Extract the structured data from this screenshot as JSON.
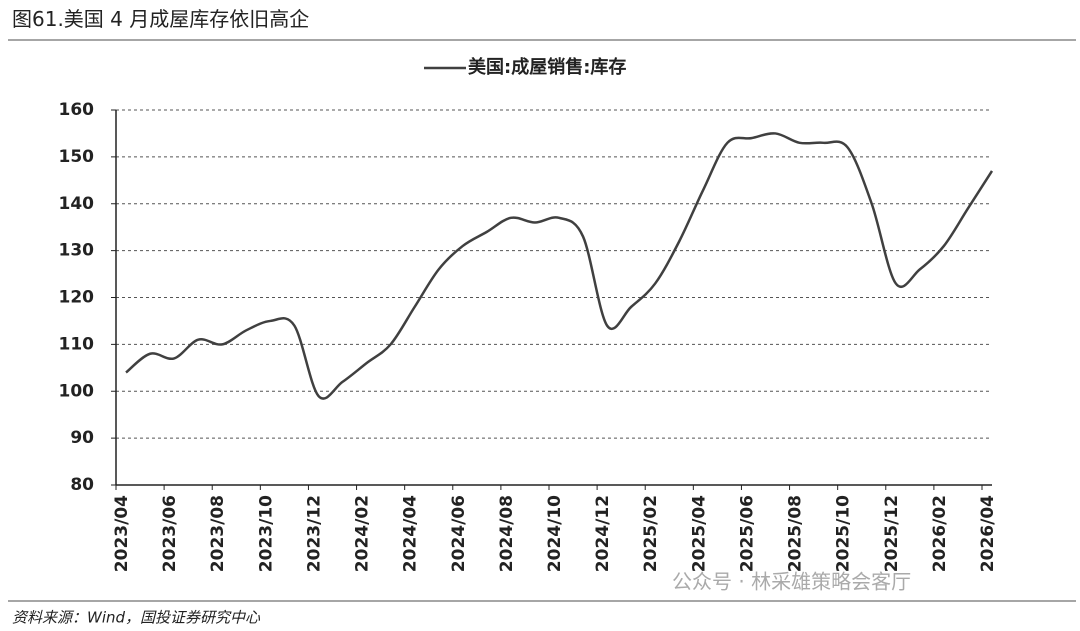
{
  "header": {
    "title": "图61.美国 4 月成屋库存依旧高企"
  },
  "chart_data": {
    "type": "line",
    "categories": [
      "2023/04",
      null,
      "2023/06",
      null,
      "2023/08",
      null,
      "2023/10",
      null,
      "2023/12",
      null,
      "2024/02",
      null,
      "2024/04",
      null,
      "2024/06",
      null,
      "2024/08",
      null,
      "2024/10",
      null,
      "2024/12",
      null,
      "2025/02",
      null,
      "2025/04",
      null,
      "2025/06",
      null,
      "2025/08",
      null,
      "2025/10",
      null,
      "2025/12",
      null,
      "2026/02",
      null,
      "2026/04"
    ],
    "series": [
      {
        "name": "美国:成屋销售:库存",
        "color": "#404040",
        "values": [
          104,
          108,
          107,
          111,
          110,
          113,
          115,
          114,
          99,
          102,
          106,
          110,
          118,
          126,
          131,
          134,
          137,
          136,
          137,
          133,
          114,
          118,
          123,
          132,
          143,
          153,
          154,
          155,
          153,
          153,
          152,
          140,
          123,
          126,
          131,
          139,
          147
        ]
      }
    ],
    "ylim": [
      80,
      160
    ],
    "yticks": [
      80,
      90,
      100,
      110,
      120,
      130,
      140,
      150,
      160
    ],
    "grid": true,
    "legend": "top"
  },
  "footer": {
    "source": "资料来源：Wind，国投证券研究中心",
    "watermark": "公众号 · 林采雄策略会客厅"
  }
}
